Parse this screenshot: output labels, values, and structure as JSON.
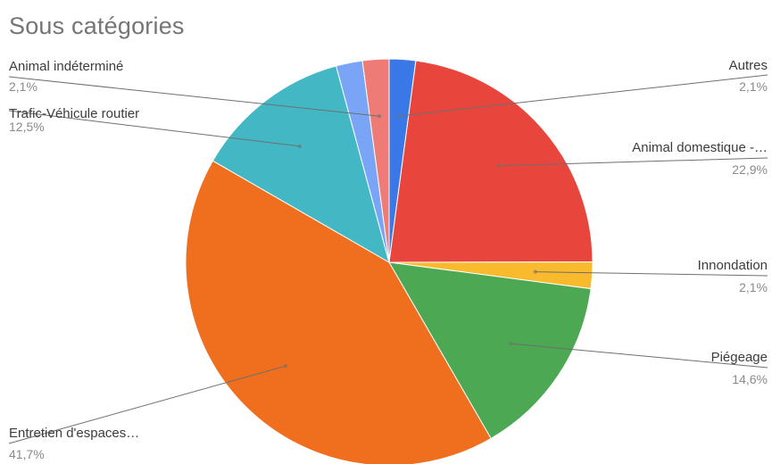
{
  "chart_data": {
    "type": "pie",
    "title": "Sous catégories",
    "slices": [
      {
        "label": "Autres",
        "percent_label": "2,1%",
        "value": 2.1,
        "color": "#3b78e7",
        "side": "right"
      },
      {
        "label": "Animal domestique -…",
        "percent_label": "22,9%",
        "value": 22.9,
        "color": "#e8453c",
        "side": "right"
      },
      {
        "label": "Innondation",
        "percent_label": "2,1%",
        "value": 2.1,
        "color": "#f9bb2d",
        "side": "right"
      },
      {
        "label": "Piégeage",
        "percent_label": "14,6%",
        "value": 14.6,
        "color": "#4ca853",
        "side": "right"
      },
      {
        "label": "Entretien d'espaces…",
        "percent_label": "41,7%",
        "value": 41.7,
        "color": "#f06f1f",
        "side": "left"
      },
      {
        "label": "Trafic-Véhicule routier",
        "percent_label": "12,5%",
        "value": 12.5,
        "color": "#43b8c4",
        "side": "left"
      },
      {
        "label": "",
        "percent_label": "",
        "value": 2.1,
        "color": "#7aa5f7",
        "side": "none"
      },
      {
        "label": "Animal indéterminé",
        "percent_label": "2,1%",
        "value": 2.1,
        "color": "#ee7b75",
        "side": "left"
      }
    ]
  }
}
